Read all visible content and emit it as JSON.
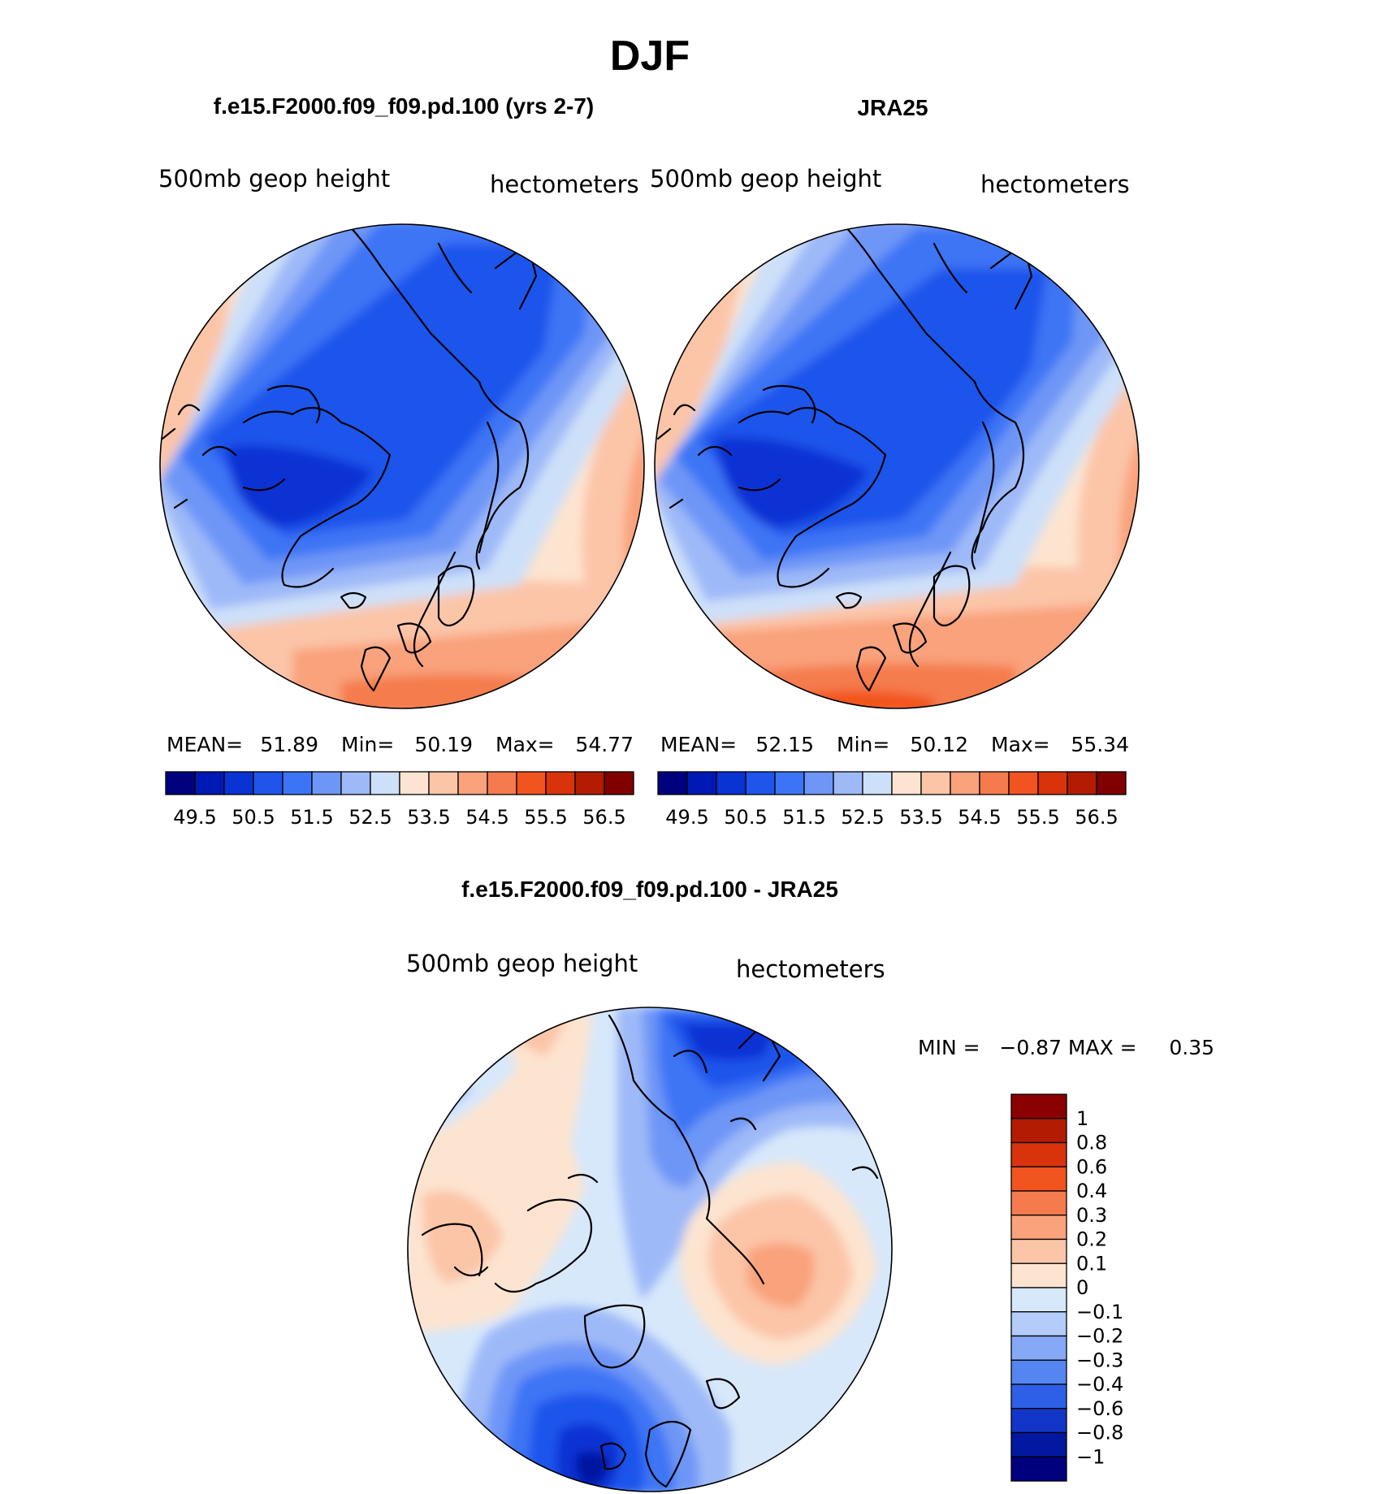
{
  "figure": {
    "title": "DJF"
  },
  "chart_data": [
    {
      "type": "heatmap",
      "title": "f.e15.F2000.f09_f09.pd.100 (yrs 2-7)",
      "left_label": "500mb geop height",
      "right_label": "hectometers",
      "projection": "north-polar-stereographic",
      "stats": {
        "mean_label": "MEAN=",
        "mean": "51.89",
        "min_label": "Min=",
        "min": "50.19",
        "max_label": "Max=",
        "max": "54.77"
      },
      "colorbar": {
        "orientation": "horizontal",
        "labels": [
          "49.5",
          "50.5",
          "51.5",
          "52.5",
          "53.5",
          "54.5",
          "55.5",
          "56.5"
        ],
        "colors": [
          "#00007f",
          "#0019b4",
          "#0a33d4",
          "#1f55eb",
          "#3c74f5",
          "#6e96f7",
          "#9eb9f8",
          "#cde0f9",
          "#fde4d0",
          "#fcc5a8",
          "#f9a27c",
          "#f57b4e",
          "#f2541f",
          "#d9330c",
          "#b31c03",
          "#800000"
        ]
      }
    },
    {
      "type": "heatmap",
      "title": "JRA25",
      "left_label": "500mb geop height",
      "right_label": "hectometers",
      "projection": "north-polar-stereographic",
      "stats": {
        "mean_label": "MEAN=",
        "mean": "52.15",
        "min_label": "Min=",
        "min": "50.12",
        "max_label": "Max=",
        "max": "55.34"
      },
      "colorbar": {
        "orientation": "horizontal",
        "labels": [
          "49.5",
          "50.5",
          "51.5",
          "52.5",
          "53.5",
          "54.5",
          "55.5",
          "56.5"
        ],
        "colors": [
          "#00007f",
          "#0019b4",
          "#0a33d4",
          "#1f55eb",
          "#3c74f5",
          "#6e96f7",
          "#9eb9f8",
          "#cde0f9",
          "#fde4d0",
          "#fcc5a8",
          "#f9a27c",
          "#f57b4e",
          "#f2541f",
          "#d9330c",
          "#b31c03",
          "#800000"
        ]
      }
    },
    {
      "type": "heatmap",
      "title": "f.e15.F2000.f09_f09.pd.100 - JRA25",
      "left_label": "500mb geop height",
      "right_label": "hectometers",
      "projection": "north-polar-stereographic",
      "stats": {
        "text": "MIN =   −0.87 MAX =     0.35"
      },
      "colorbar": {
        "orientation": "vertical",
        "labels": [
          "1",
          "0.8",
          "0.6",
          "0.4",
          "0.3",
          "0.2",
          "0.1",
          "0",
          "−0.1",
          "−0.2",
          "−0.3",
          "−0.4",
          "−0.6",
          "−0.8",
          "−1"
        ],
        "colors_top_to_bottom": [
          "#8b0000",
          "#b31c03",
          "#d9330c",
          "#f2541f",
          "#f57b4e",
          "#f9a27c",
          "#fcc5a8",
          "#fde4d0",
          "#d7e8fb",
          "#b3ccf9",
          "#86a9f7",
          "#5585f1",
          "#2d60e6",
          "#1236c8",
          "#0318a0",
          "#00007f"
        ]
      }
    }
  ]
}
